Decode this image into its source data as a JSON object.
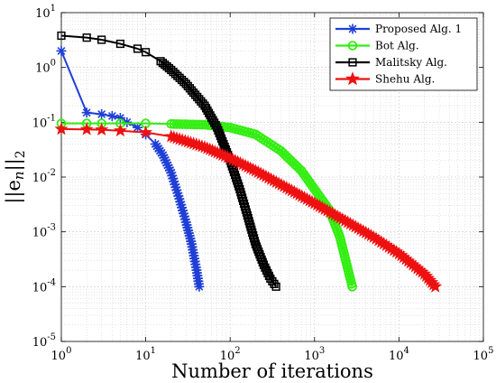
{
  "chart_data": {
    "type": "line",
    "xscale": "log",
    "yscale": "log",
    "xlim": [
      1,
      100000
    ],
    "ylim": [
      1e-05,
      10
    ],
    "grid": true,
    "xlabel": "Number of iterations",
    "ylabel": "||e_n||_2",
    "ylabel_parts": {
      "base": "||e",
      "sub": "n",
      "tail": "||",
      "subscript2": "2"
    },
    "legend_position": "top-right",
    "x_ticks": [
      {
        "value": 1,
        "base": "10",
        "exp": "0"
      },
      {
        "value": 10,
        "base": "10",
        "exp": "1"
      },
      {
        "value": 100,
        "base": "10",
        "exp": "2"
      },
      {
        "value": 1000,
        "base": "10",
        "exp": "3"
      },
      {
        "value": 10000,
        "base": "10",
        "exp": "4"
      },
      {
        "value": 100000,
        "base": "10",
        "exp": "5"
      }
    ],
    "y_ticks": [
      {
        "value": 1e-05,
        "base": "10",
        "exp": "-5"
      },
      {
        "value": 0.0001,
        "base": "10",
        "exp": "-4"
      },
      {
        "value": 0.001,
        "base": "10",
        "exp": "-3"
      },
      {
        "value": 0.01,
        "base": "10",
        "exp": "-2"
      },
      {
        "value": 0.1,
        "base": "10",
        "exp": "-1"
      },
      {
        "value": 1,
        "base": "10",
        "exp": "0"
      },
      {
        "value": 10,
        "base": "10",
        "exp": "1"
      }
    ],
    "series": [
      {
        "name": "Proposed Alg. 1",
        "color": "#1f3fd6",
        "marker": "asterisk",
        "x": [
          1,
          2,
          3,
          4,
          5,
          6,
          8,
          10,
          13,
          16,
          20,
          25,
          30,
          35,
          40,
          43
        ],
        "y": [
          2.0,
          0.15,
          0.14,
          0.13,
          0.12,
          0.1,
          0.08,
          0.06,
          0.04,
          0.025,
          0.012,
          0.004,
          0.0015,
          0.0006,
          0.0002,
          0.0001
        ]
      },
      {
        "name": "Bot Alg.",
        "color": "#33ee11",
        "marker": "circle",
        "x": [
          1,
          2,
          3,
          5,
          10,
          20,
          50,
          100,
          200,
          400,
          700,
          1000,
          1500,
          2000,
          2500,
          2800
        ],
        "y": [
          0.095,
          0.095,
          0.095,
          0.095,
          0.095,
          0.093,
          0.09,
          0.08,
          0.06,
          0.03,
          0.013,
          0.006,
          0.0025,
          0.0008,
          0.0002,
          0.0001
        ]
      },
      {
        "name": "Malitsky Alg.",
        "color": "#000000",
        "marker": "square",
        "x": [
          1,
          2,
          3,
          5,
          8,
          10,
          15,
          20,
          30,
          50,
          70,
          100,
          130,
          160,
          200,
          250,
          300,
          350
        ],
        "y": [
          3.8,
          3.5,
          3.2,
          2.7,
          2.2,
          1.9,
          1.3,
          0.9,
          0.5,
          0.2,
          0.08,
          0.02,
          0.006,
          0.002,
          0.0006,
          0.00025,
          0.00014,
          0.0001
        ]
      },
      {
        "name": "Shehu Alg.",
        "color": "#ee1111",
        "marker": "star",
        "x": [
          1,
          2,
          3,
          5,
          10,
          20,
          50,
          100,
          200,
          500,
          1000,
          2000,
          5000,
          10000,
          20000,
          27000
        ],
        "y": [
          0.075,
          0.074,
          0.073,
          0.07,
          0.065,
          0.055,
          0.035,
          0.022,
          0.013,
          0.006,
          0.0033,
          0.0018,
          0.0008,
          0.0004,
          0.00017,
          0.0001
        ]
      }
    ]
  }
}
